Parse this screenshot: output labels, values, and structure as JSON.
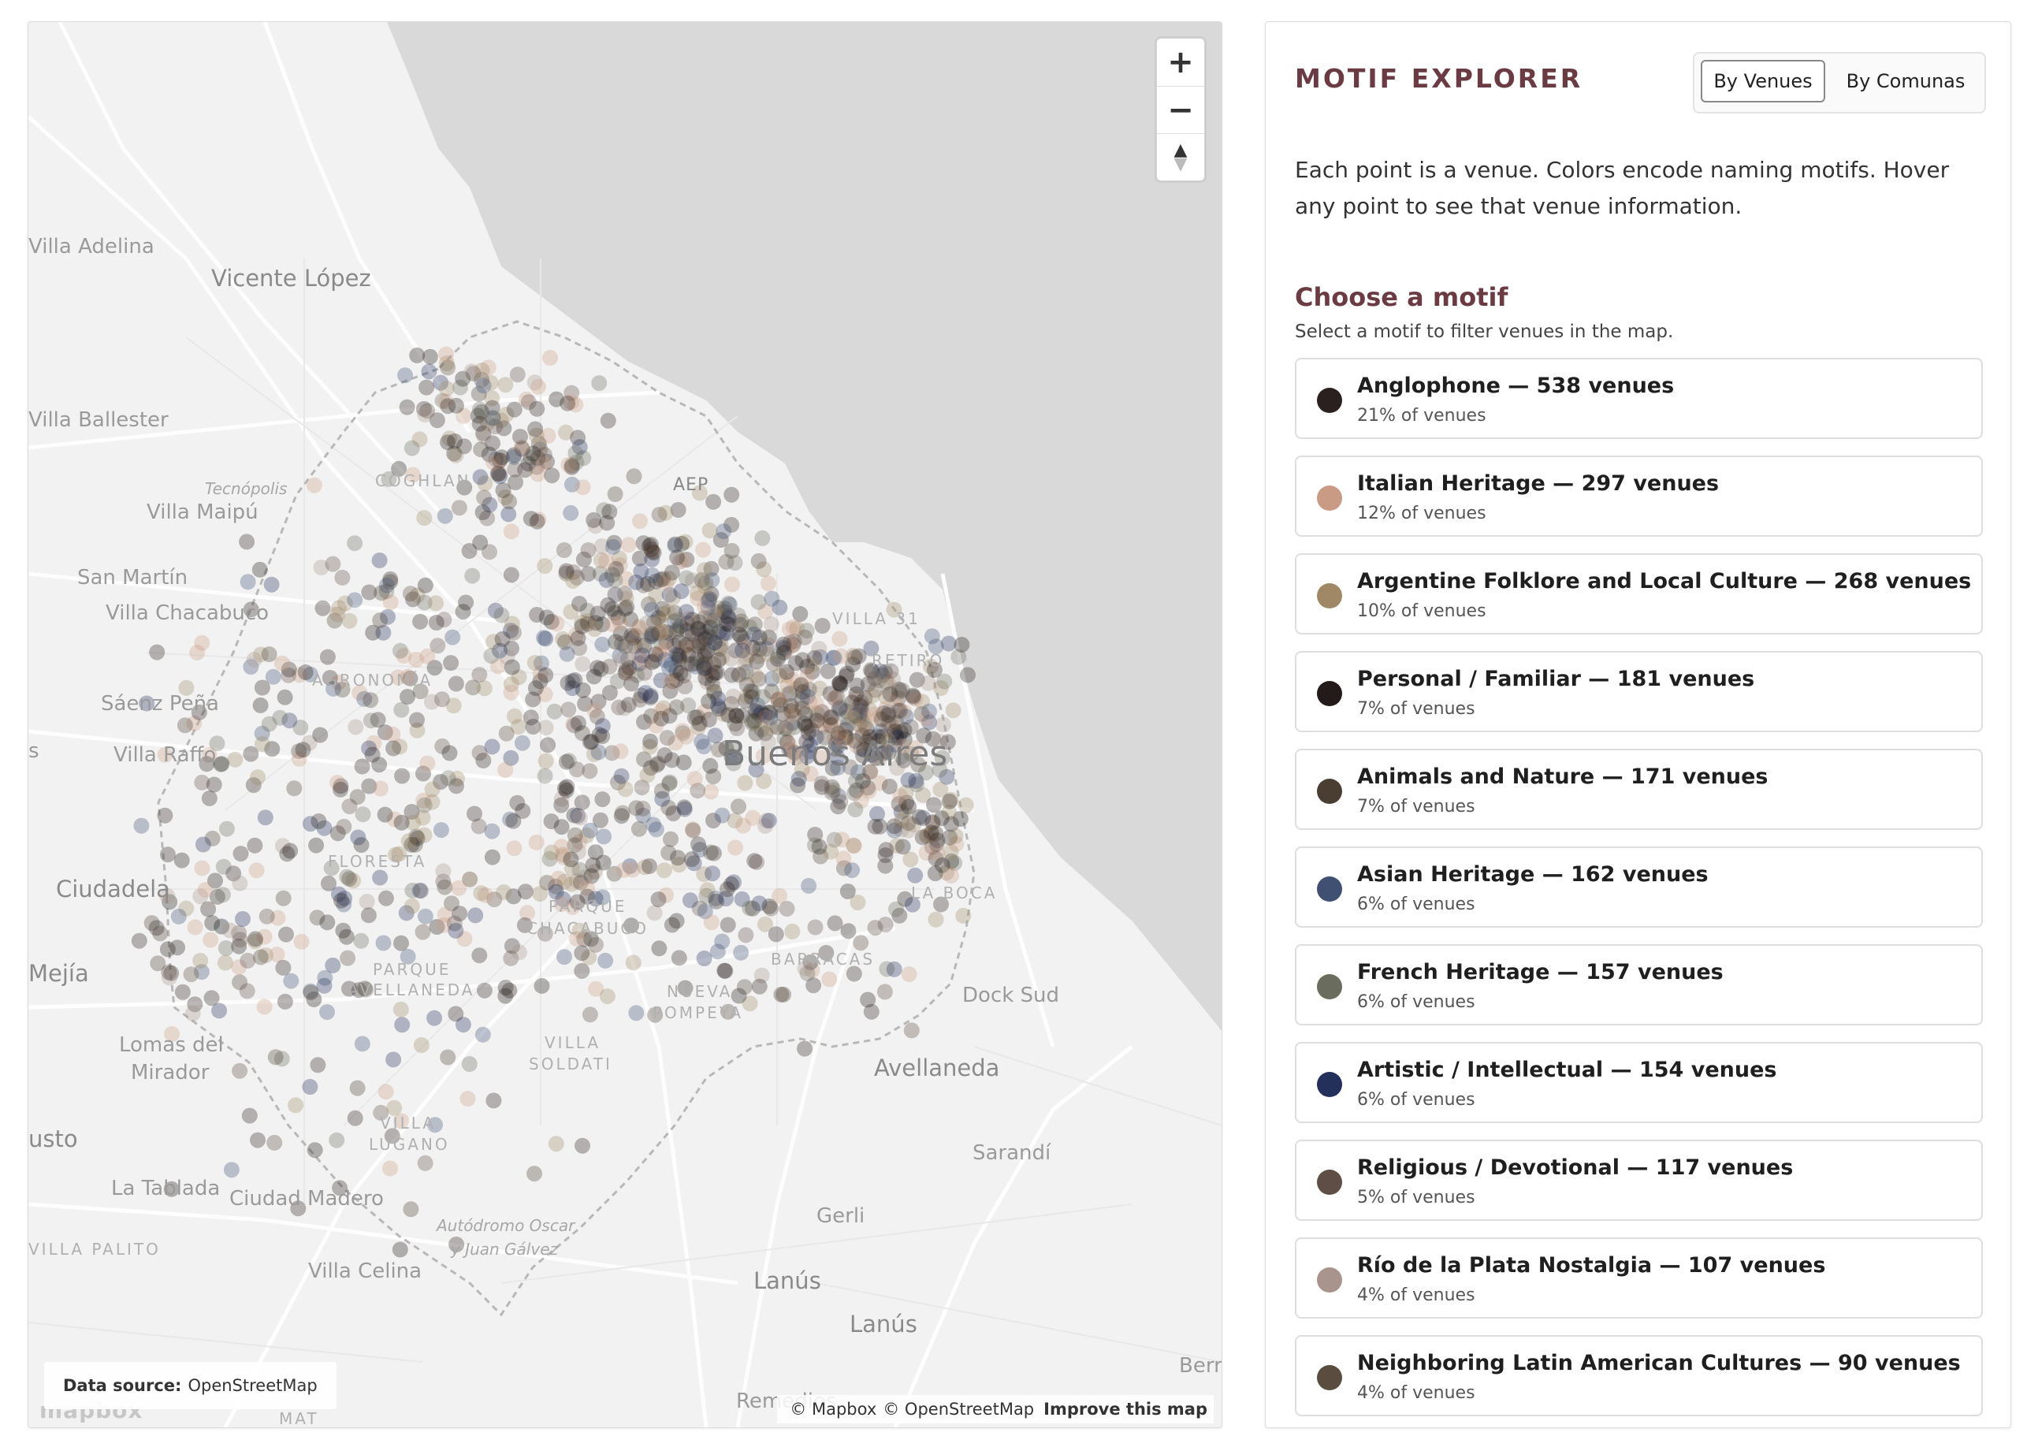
{
  "map": {
    "data_source_label": "Data source:",
    "data_source_value": "OpenStreetMap",
    "mapbox_logo": "mapbox",
    "attribution": {
      "mapbox": "© Mapbox",
      "osm": "© OpenStreetMap",
      "improve": "Improve this map"
    },
    "controls": {
      "zoom_in": "+",
      "zoom_out": "−",
      "reset_north": "▲"
    },
    "labels": {
      "villa_adelina": "Villa Adelina",
      "vicente_lopez": "Vicente López",
      "villa_ballester": "Villa Ballester",
      "tecnopolis": "Tecnópolis",
      "villa_maipu": "Villa Maipú",
      "san_martin": "San Martín",
      "villa_chacabuco": "Villa Chacabuco",
      "saenz_pena": "Sáenz Peña",
      "villa_raffo": "Villa Raffo",
      "ciudadela": "Ciudadela",
      "mejia": "Mejía",
      "lomas_del_mirador_1": "Lomas del",
      "lomas_del_mirador_2": "Mirador",
      "justo": "usto",
      "la_tablada": "La Tablada",
      "ciudad_madero": "Ciudad Madero",
      "villa_palito": "VILLA PALITO",
      "villa_celina": "Villa Celina",
      "autodromo_1": "Autódromo Oscar",
      "autodromo_2": "y Juan Gálvez",
      "gerli": "Gerli",
      "lanus_1": "Lanús",
      "lanus_2": "Lanús",
      "avellaneda": "Avellaneda",
      "sarandi": "Sarandí",
      "dock_sud": "Dock Sud",
      "buenos_aires": "Buenos Aires",
      "aep": "AEP",
      "coghlan": "COGHLAN",
      "agronomia": "AGRONOMÍA",
      "floresta": "FLORESTA",
      "parque_chacabuco_1": "PARQUE",
      "parque_chacabuco_2": "CHACABUCO",
      "parque_avellaneda_1": "PARQUE",
      "parque_avellaneda_2": "AVELLANEDA",
      "nueva_pompeya_1": "NUEVA",
      "nueva_pompeya_2": "POMPEYA",
      "barracas": "BARRACAS",
      "la_boca": "LA BOCA",
      "villa_soldati_1": "VILLA",
      "villa_soldati_2": "SOLDATI",
      "villa_lugano_1": "VILLA",
      "villa_lugano_2": "LUGANO",
      "villa_31": "VILLA 31",
      "retiro": "RETIRO",
      "s_edge": "s",
      "remedios": "Remedios",
      "berr": "Berr",
      "mat": "MAT"
    }
  },
  "panel": {
    "title": "MOTIF EXPLORER",
    "toggle": {
      "venues": "By Venues",
      "comunas": "By Comunas"
    },
    "description": "Each point is a venue. Colors encode naming motifs. Hover any point to see that venue information.",
    "choose_title": "Choose a motif",
    "choose_subtitle": "Select a motif to filter venues in the map.",
    "motifs": [
      {
        "label": "Anglophone — 538 venues",
        "pct": "21% of venues",
        "color": "#2a211f"
      },
      {
        "label": "Italian Heritage — 297 venues",
        "pct": "12% of venues",
        "color": "#c99a84"
      },
      {
        "label": "Argentine Folklore and Local Culture — 268 venues",
        "pct": "10% of venues",
        "color": "#a08866"
      },
      {
        "label": "Personal / Familiar — 181 venues",
        "pct": "7% of venues",
        "color": "#231b1a"
      },
      {
        "label": "Animals and Nature — 171 venues",
        "pct": "7% of venues",
        "color": "#4a3e33"
      },
      {
        "label": "Asian Heritage — 162 venues",
        "pct": "6% of venues",
        "color": "#3f5072"
      },
      {
        "label": "French Heritage — 157 venues",
        "pct": "6% of venues",
        "color": "#6a6c5d"
      },
      {
        "label": "Artistic / Intellectual — 154 venues",
        "pct": "6% of venues",
        "color": "#22305a"
      },
      {
        "label": "Religious / Devotional — 117 venues",
        "pct": "5% of venues",
        "color": "#5f4e46"
      },
      {
        "label": "Río de la Plata Nostalgia — 107 venues",
        "pct": "4% of venues",
        "color": "#a8948c"
      },
      {
        "label": "Neighboring Latin American Cultures — 90 venues",
        "pct": "4% of venues",
        "color": "#5a4c3e"
      }
    ]
  }
}
